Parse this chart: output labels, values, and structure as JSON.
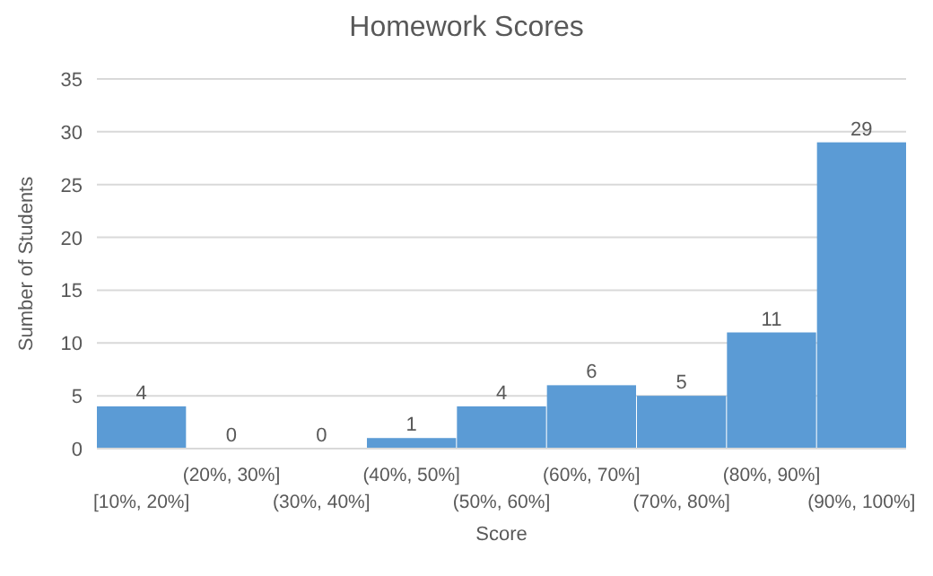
{
  "chart_data": {
    "type": "bar",
    "title": "Homework Scores",
    "xlabel": "Score",
    "ylabel": "Sumber of Students",
    "categories": [
      "[10%, 20%]",
      "(20%, 30%]",
      "(30%, 40%]",
      "(40%, 50%]",
      "(50%, 60%]",
      "(60%, 70%]",
      "(70%, 80%]",
      "(80%, 90%]",
      "(90%, 100%]"
    ],
    "values": [
      4,
      0,
      0,
      1,
      4,
      6,
      5,
      11,
      29
    ],
    "color": "#5b9bd5",
    "data_labels": true,
    "ylim": [
      0,
      35
    ],
    "yticks": [
      0,
      5,
      10,
      15,
      20,
      25,
      30,
      35
    ],
    "grid": "y"
  }
}
